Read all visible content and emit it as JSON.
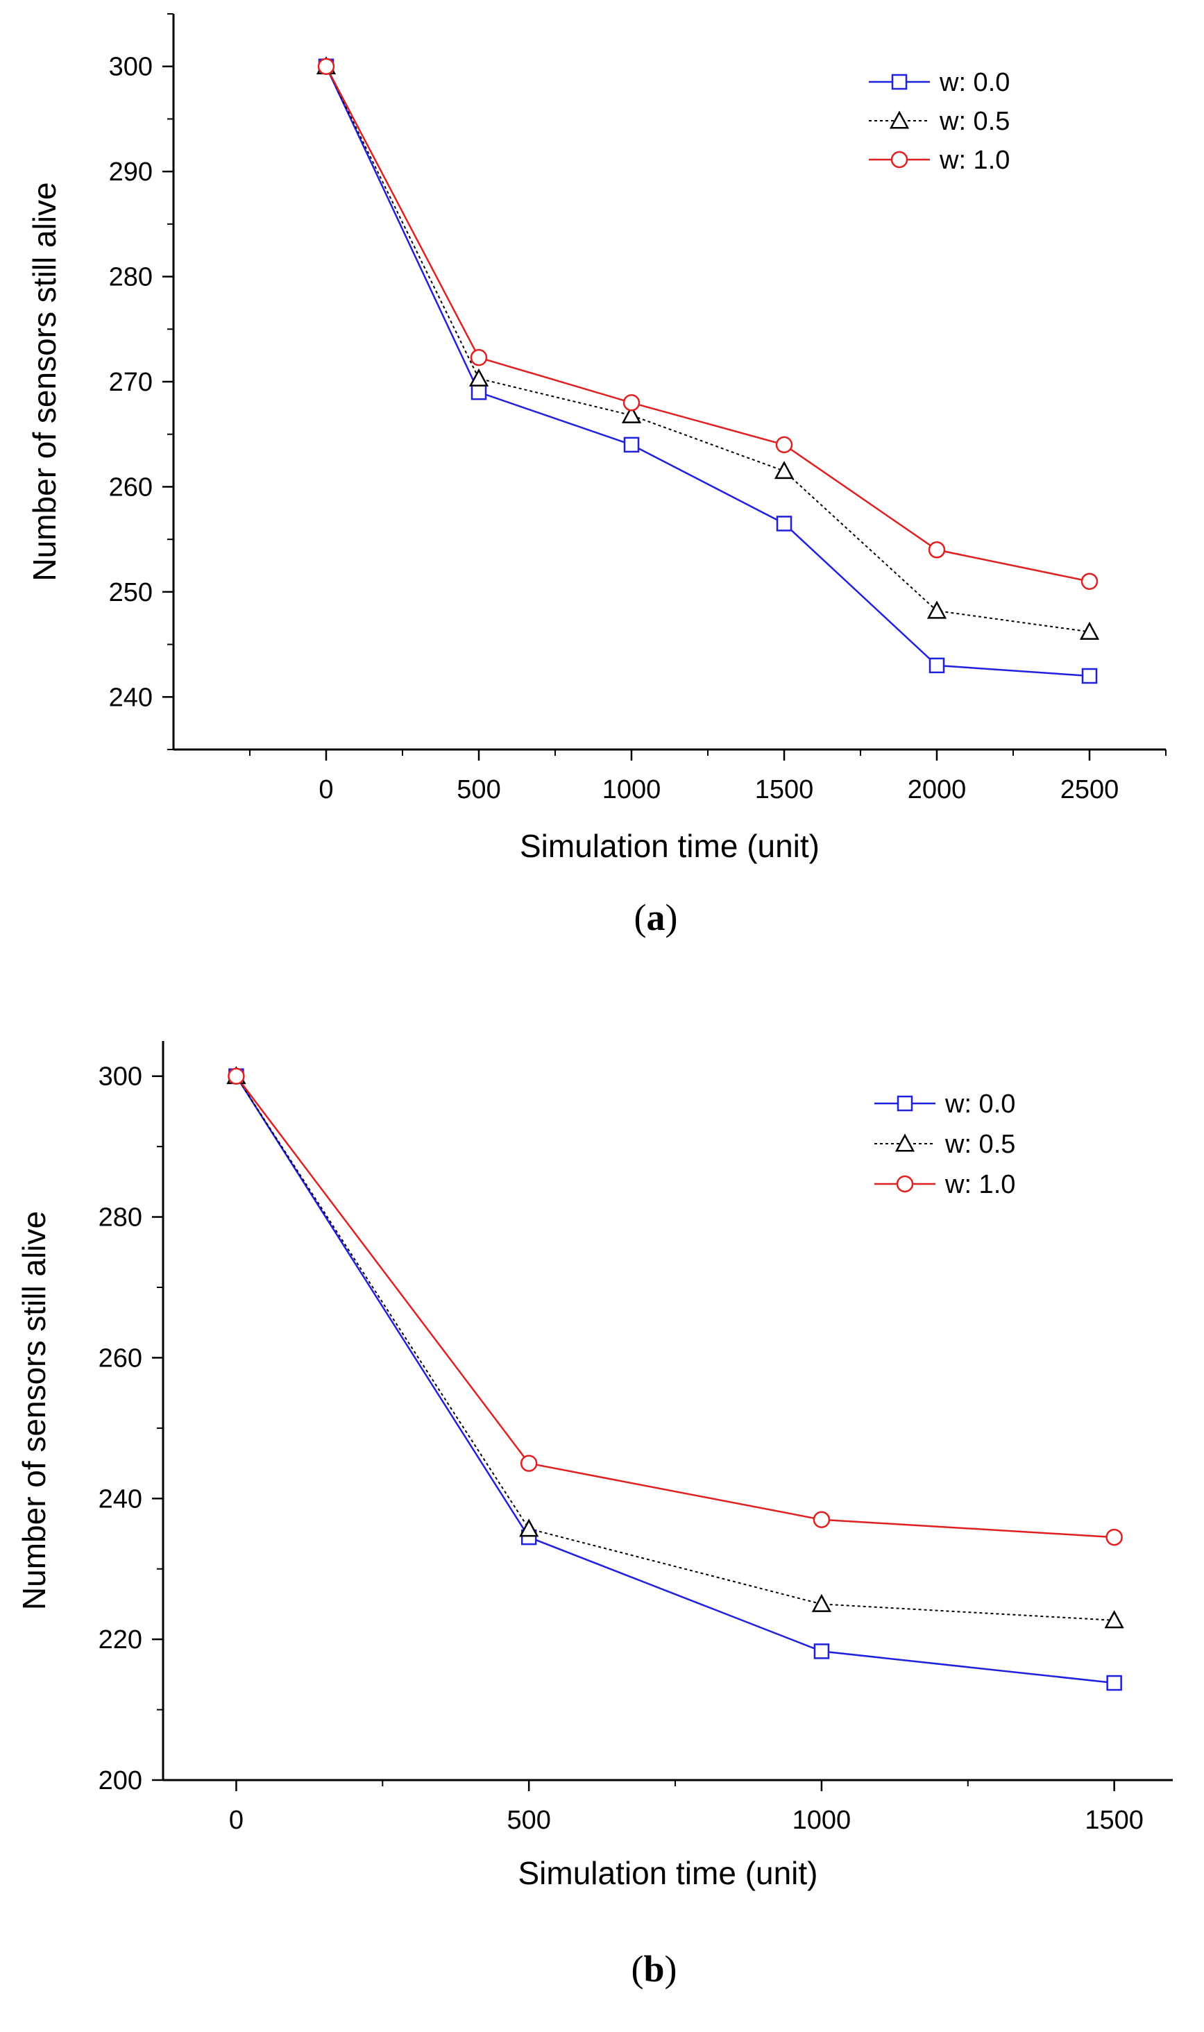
{
  "chart_data": [
    {
      "id": "a",
      "caption_letter": "a",
      "type": "line",
      "xlabel": "Simulation time (unit)",
      "ylabel": "Number of sensors still alive",
      "xlim": [
        -500,
        2750
      ],
      "ylim": [
        235,
        305
      ],
      "xticks": [
        0,
        500,
        1000,
        1500,
        2000,
        2500
      ],
      "xtick_labels": [
        "0",
        "500",
        "1000",
        "1500",
        "2000",
        "2500"
      ],
      "yticks": [
        240,
        250,
        260,
        270,
        280,
        290,
        300
      ],
      "ytick_labels": [
        "240",
        "250",
        "260",
        "270",
        "280",
        "290",
        "300"
      ],
      "x": [
        0,
        500,
        1000,
        1500,
        2000,
        2500
      ],
      "series": [
        {
          "name": "w: 0.0",
          "values": [
            300,
            269,
            264,
            256.5,
            243,
            242
          ],
          "color": "#2020e0",
          "marker": "square",
          "dash": "solid"
        },
        {
          "name": "w: 0.5",
          "values": [
            300,
            270.3,
            266.8,
            261.5,
            248.2,
            246.2
          ],
          "color": "#000000",
          "marker": "triangle",
          "dash": "dotted"
        },
        {
          "name": "w: 1.0",
          "values": [
            300,
            272.3,
            268,
            264,
            254,
            251
          ],
          "color": "#e02020",
          "marker": "circle",
          "dash": "solid"
        }
      ],
      "legend_position": "top-right"
    },
    {
      "id": "b",
      "caption_letter": "b",
      "type": "line",
      "xlabel": "Simulation time (unit)",
      "ylabel": "Number of sensors still alive",
      "xlim": [
        -125,
        1600
      ],
      "ylim": [
        200,
        305
      ],
      "xticks": [
        0,
        500,
        1000,
        1500
      ],
      "xtick_labels": [
        "0",
        "500",
        "1000",
        "1500"
      ],
      "yticks": [
        200,
        220,
        240,
        260,
        280,
        300
      ],
      "ytick_labels": [
        "200",
        "220",
        "240",
        "260",
        "280",
        "300"
      ],
      "x": [
        0,
        500,
        1000,
        1500
      ],
      "series": [
        {
          "name": "w: 0.0",
          "values": [
            300,
            234.5,
            218.3,
            213.8
          ],
          "color": "#2020e0",
          "marker": "square",
          "dash": "solid"
        },
        {
          "name": "w: 0.5",
          "values": [
            300,
            235.7,
            225,
            222.7
          ],
          "color": "#000000",
          "marker": "triangle",
          "dash": "dotted"
        },
        {
          "name": "w: 1.0",
          "values": [
            300,
            245,
            237,
            234.5
          ],
          "color": "#e02020",
          "marker": "circle",
          "dash": "solid"
        }
      ],
      "legend_position": "top-right"
    }
  ]
}
